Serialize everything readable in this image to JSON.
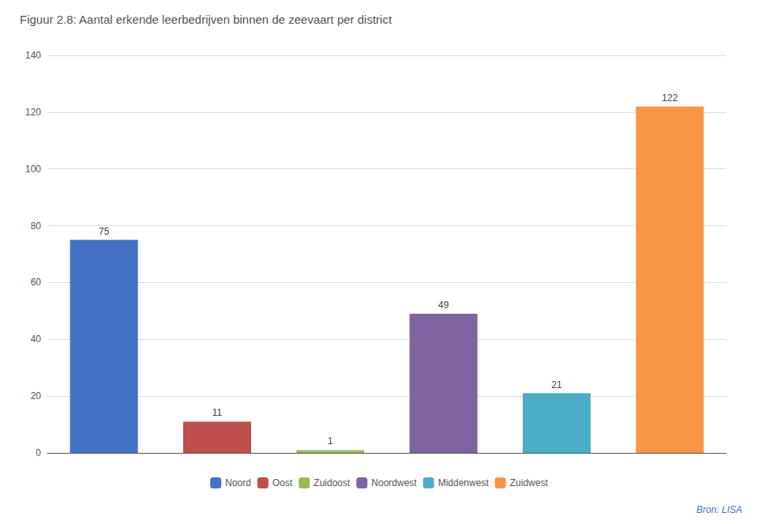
{
  "chart_data": {
    "type": "bar",
    "title": "Figuur 2.8: Aantal erkende leerbedrijven binnen de zeevaart per district",
    "categories": [
      "Noord",
      "Oost",
      "Zuidoost",
      "Noordwest",
      "Middenwest",
      "Zuidwest"
    ],
    "values": [
      75,
      11,
      1,
      49,
      21,
      122
    ],
    "colors": [
      "#4472c4",
      "#c0504d",
      "#9bbb59",
      "#8064a2",
      "#4bacc6",
      "#f79646"
    ],
    "ylim": [
      0,
      140
    ],
    "yticks": [
      0,
      20,
      40,
      60,
      80,
      100,
      120,
      140
    ],
    "grid": true,
    "data_labels": true,
    "tick_labels": "y",
    "legend": "bottom",
    "annotations": [
      "Bron: LISA"
    ]
  }
}
